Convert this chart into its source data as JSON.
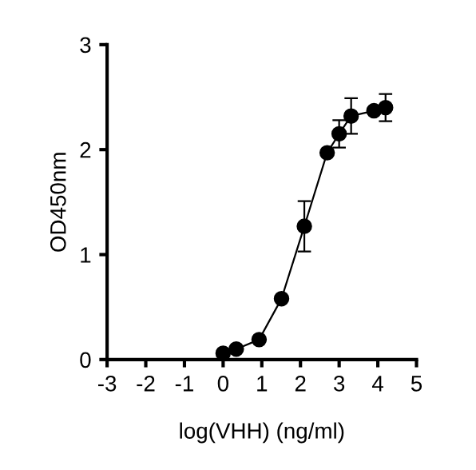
{
  "chart_data": {
    "type": "line",
    "xlabel": "log(VHH) (ng/ml)",
    "ylabel": "OD450nm",
    "xlim": [
      -3,
      5
    ],
    "xticks": [
      -3,
      -2,
      -1,
      0,
      1,
      2,
      3,
      4,
      5
    ],
    "ylim": [
      0,
      3
    ],
    "yticks": [
      0,
      1,
      2,
      3
    ],
    "grid": false,
    "marker": "circle",
    "line_style": "solid",
    "series": [
      {
        "color": "#000000",
        "x": [
          0,
          0.34,
          0.93,
          1.51,
          2.1,
          2.69,
          3.0,
          3.31,
          3.9,
          4.2
        ],
        "values": [
          0.06,
          0.1,
          0.19,
          0.58,
          1.27,
          1.97,
          2.15,
          2.32,
          2.37,
          2.4
        ],
        "errors": [
          null,
          null,
          null,
          null,
          0.24,
          null,
          0.13,
          0.17,
          0.03,
          0.13
        ]
      }
    ]
  }
}
